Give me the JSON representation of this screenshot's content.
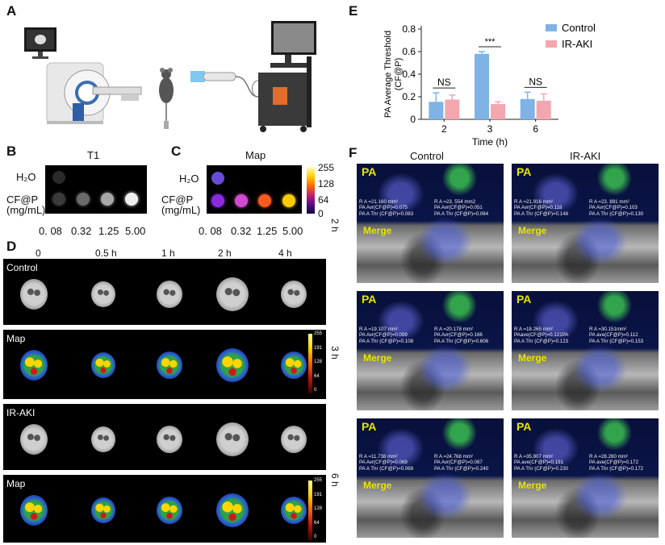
{
  "panel_labels": {
    "A": "A",
    "B": "B",
    "C": "C",
    "D": "D",
    "E": "E",
    "F": "F"
  },
  "panelB": {
    "title": "T1",
    "row_labels": [
      "H₂O",
      "CF@P",
      "(mg/mL)"
    ],
    "concentrations": [
      "0. 08",
      "0.32",
      "1.25",
      "5.00"
    ],
    "t1_gray": [
      "#3a3a3a",
      "#6a6a6a",
      "#a8a8a8",
      "#f0f0f0"
    ]
  },
  "panelC": {
    "title": "Map",
    "row_labels": [
      "H₂O",
      "CF@P",
      "(mg/mL)"
    ],
    "concentrations": [
      "0. 08",
      "0.32",
      "1.25",
      "5.00"
    ],
    "colorbar_ticks": [
      "255",
      "128",
      "64",
      "0"
    ],
    "map_colors": [
      "#8a2be2",
      "#d04bd0",
      "#ff5a20",
      "#ffcc00"
    ],
    "water_color": "#6a4bd8"
  },
  "panelD": {
    "timepoints": [
      "0",
      "0.5 h",
      "1 h",
      "2 h",
      "4 h"
    ],
    "rows": [
      {
        "label": "Control",
        "type": "mri"
      },
      {
        "label": "Map",
        "type": "map"
      },
      {
        "label": "IR-AKI",
        "type": "mri"
      },
      {
        "label": "Map",
        "type": "map"
      }
    ],
    "colorbar_ticks": [
      "255",
      "191",
      "128",
      "64",
      "0"
    ]
  },
  "chart_data": {
    "type": "bar",
    "categories": [
      "2",
      "3",
      "6"
    ],
    "series": [
      {
        "name": "Control",
        "values": [
          0.155,
          0.58,
          0.18
        ],
        "errors": [
          0.08,
          0.02,
          0.06
        ],
        "color": "#7fb3e6"
      },
      {
        "name": "IR-AKI",
        "values": [
          0.175,
          0.135,
          0.165
        ],
        "errors": [
          0.04,
          0.02,
          0.06
        ],
        "color": "#f4a6ae"
      }
    ],
    "ylim": [
      0,
      0.8
    ],
    "yticks": [
      "0",
      "0.2",
      "0.4",
      "0.6",
      "0.8"
    ],
    "xlabel": "Time (h)",
    "ylabel_line1": "PA Average Threshold",
    "ylabel_line2": "(CF@P)",
    "significance": [
      "NS",
      "***",
      "NS"
    ],
    "legend_position": "top-right"
  },
  "panelF": {
    "col_titles": [
      "Control",
      "IR-AKI"
    ],
    "row_times": [
      "2 h",
      "3 h",
      "6 h"
    ],
    "pa_label": "PA",
    "merge_label": "Merge",
    "cells": [
      [
        {
          "left": [
            "R A =21.160 mm²",
            "PA Avr(CF@P)=0.075",
            "PA A Thr (CF@P)=0.083"
          ],
          "right": [
            "R A =23. 554 mm2",
            "PA Avr(CF@P)=0.051",
            "PA A Thr (CF@P)=0.064"
          ]
        },
        {
          "left": [
            "R A =21.916 mm²",
            "PA Avr(CF@P)=0.118",
            "PA A Thr (CF@P)=0.148"
          ],
          "right": [
            "R A =23. 881 mm²",
            "PA Avr(CF@P)=0.103",
            "PA A Thr (CF@P)=0.130"
          ]
        }
      ],
      [
        {
          "left": [
            "R A =19.107 mm²",
            "PA Avr(CF@P)=0.099",
            "PA A Thr (CF@P)=0.108"
          ],
          "right": [
            "R A =20.178 mm²",
            "PA Avr(CF@P)=0.166",
            "PA A Thr (CF@P)=0.606"
          ]
        },
        {
          "left": [
            "R A =18.265 mm²",
            "PAave(CF@P)=0.121PA",
            "PA A Thr (CF@P)=0.123"
          ],
          "right": [
            "R A =30.151mm²",
            "PA ave(CF@P)=0.112",
            "PA A Thr (CF@P)=0.153"
          ]
        }
      ],
      [
        {
          "left": [
            "R A =11.738 mm²",
            "PA Avr(CF@P)=0.069",
            "PA A Thr (CF@P)=0.069"
          ],
          "right": [
            "R A =24.768 mm²",
            "PA Avr(CF@P)=0.087",
            "PA A Thr (CF@P)=0.240"
          ]
        },
        {
          "left": [
            "R A =35.807 mm²",
            "PA ave(CF@P)=0.191",
            "PA A Thr (CF@P)=0.230"
          ],
          "right": [
            "R A =28.280 mm²",
            "PA ave(CF@P)=0.172",
            "PA A Thr (CF@P)=0.172"
          ]
        }
      ]
    ]
  }
}
